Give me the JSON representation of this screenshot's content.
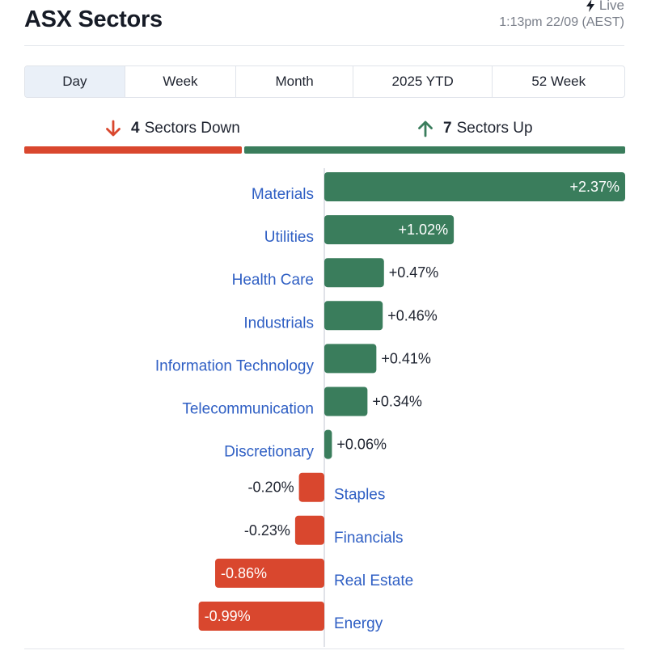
{
  "header": {
    "title": "ASX Sectors",
    "live_label": "Live",
    "timestamp": "1:13pm 22/09 (AEST)"
  },
  "tabs": [
    {
      "label": "Day",
      "active": true
    },
    {
      "label": "Week",
      "active": false
    },
    {
      "label": "Month",
      "active": false
    },
    {
      "label": "2025 YTD",
      "active": false
    },
    {
      "label": "52 Week",
      "active": false
    }
  ],
  "summary": {
    "down_count": "4",
    "down_text": "Sectors Down",
    "up_count": "7",
    "up_text": "Sectors Up"
  },
  "colors": {
    "up": "#3a7d5c",
    "down": "#d9472e",
    "label": "#2f5fc4",
    "axis": "#d5d9e0"
  },
  "icons": {
    "live": "lightning-bolt-icon",
    "down": "arrow-down-icon",
    "up": "arrow-up-icon"
  },
  "chart_data": {
    "type": "bar",
    "orientation": "horizontal",
    "categories": [
      "Materials",
      "Utilities",
      "Health Care",
      "Industrials",
      "Information Technology",
      "Telecommunication",
      "Discretionary",
      "Staples",
      "Financials",
      "Real Estate",
      "Energy"
    ],
    "values": [
      2.37,
      1.02,
      0.47,
      0.46,
      0.41,
      0.34,
      0.06,
      -0.2,
      -0.23,
      -0.86,
      -0.99
    ],
    "value_labels": [
      "+2.37%",
      "+1.02%",
      "+0.47%",
      "+0.46%",
      "+0.41%",
      "+0.34%",
      "+0.06%",
      "-0.20%",
      "-0.23%",
      "-0.86%",
      "-0.99%"
    ],
    "unit": "%",
    "grid": false,
    "legend": "none"
  }
}
